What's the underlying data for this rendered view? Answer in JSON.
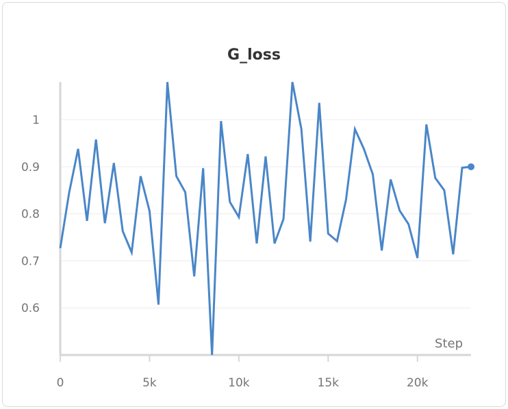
{
  "panel": {
    "title": "G_loss"
  },
  "chart_data": {
    "type": "line",
    "title": "G_loss",
    "xlabel": "Step",
    "ylabel": "",
    "xlim": [
      0,
      23000
    ],
    "ylim": [
      0.5,
      1.08
    ],
    "x_ticks": [
      0,
      5000,
      10000,
      15000,
      20000
    ],
    "x_tick_labels": [
      "0",
      "5k",
      "10k",
      "15k",
      "20k"
    ],
    "y_ticks": [
      0.6,
      0.7,
      0.8,
      0.9,
      1
    ],
    "y_tick_labels": [
      "0.6",
      "0.7",
      "0.8",
      "0.9",
      "1"
    ],
    "grid": true,
    "color": "#4a86c8",
    "series": [
      {
        "x": [
          0,
          500,
          1000,
          1500,
          2000,
          2500,
          3000,
          3500,
          4000,
          4500,
          5000,
          5500,
          6000,
          6500,
          7000,
          7500,
          8000,
          8500,
          9000,
          9500,
          10000,
          10500,
          11000,
          11500,
          12000,
          12500,
          13000,
          13500,
          14000,
          14500,
          15000,
          15500,
          16000,
          16500,
          17000,
          17500,
          18000,
          18500,
          19000,
          19500,
          20000,
          20500,
          21000,
          21500,
          22000,
          22500,
          23000
        ],
        "y": [
          0.727,
          0.845,
          0.938,
          0.785,
          0.958,
          0.78,
          0.908,
          0.763,
          0.718,
          0.88,
          0.806,
          0.607,
          1.08,
          0.88,
          0.846,
          0.667,
          0.897,
          0.5,
          0.997,
          0.825,
          0.793,
          0.927,
          0.737,
          0.922,
          0.737,
          0.789,
          1.08,
          0.98,
          0.741,
          1.036,
          0.758,
          0.742,
          0.83,
          0.98,
          0.938,
          0.884,
          0.722,
          0.873,
          0.807,
          0.778,
          0.706,
          0.99,
          0.876,
          0.85,
          0.714,
          0.898,
          0.9
        ]
      }
    ]
  }
}
